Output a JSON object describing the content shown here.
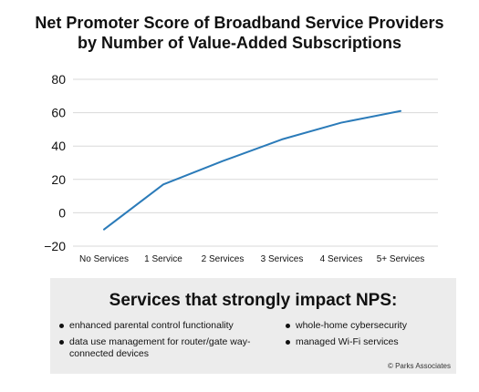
{
  "title_line1": "Net Promoter Score of Broadband Service Providers",
  "title_line2": "by Number of Value-Added Subscriptions",
  "chart_data": {
    "type": "line",
    "title": "Net Promoter Score of Broadband Service Providers by Number of Value-Added Subscriptions",
    "categories": [
      "No Services",
      "1 Service",
      "2 Services",
      "3 Services",
      "4 Services",
      "5+ Services"
    ],
    "series": [
      {
        "values": [
          -10,
          17,
          31,
          44,
          54,
          61
        ],
        "color": "#2b7bb9"
      }
    ],
    "ylim": [
      -20,
      80
    ],
    "yticks": [
      "80",
      "60",
      "40",
      "20",
      "0",
      "−20"
    ],
    "ytick_values": [
      80,
      60,
      40,
      20,
      0,
      -20
    ],
    "grid": true
  },
  "panel": {
    "title": "Services that strongly impact NPS:",
    "bullets_left": [
      "enhanced parental control functionality",
      "data use management for router/gate way-connected devices"
    ],
    "bullets_right": [
      "whole-home cybersecurity",
      "managed Wi-Fi services"
    ],
    "copyright": "© Parks Associates"
  }
}
